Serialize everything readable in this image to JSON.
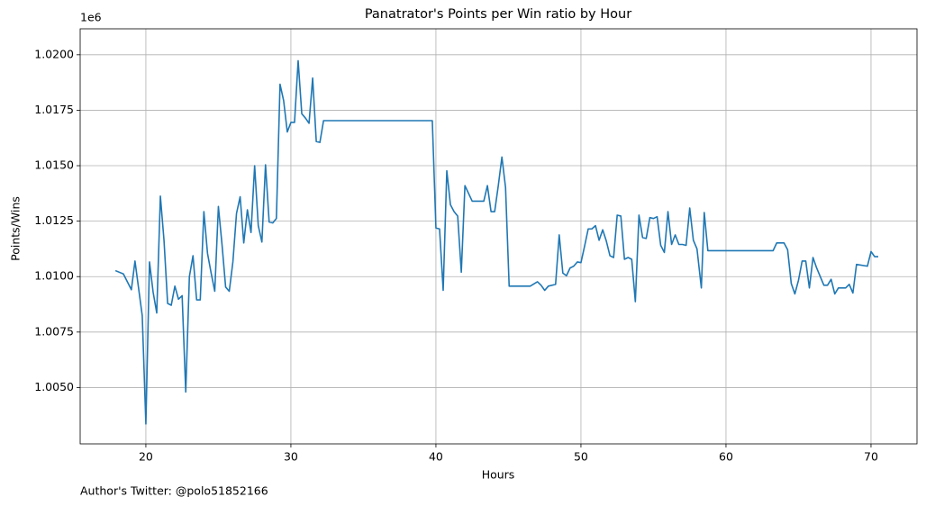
{
  "chart_data": {
    "type": "line",
    "title": "Panatrator's Points per Win ratio by Hour",
    "xlabel": "Hours",
    "ylabel": "Points/Wins",
    "y_offset_label": "1e6",
    "footnote": "Author's Twitter: @polo51852166",
    "color": "#1f77b4",
    "grid": true,
    "xlim": [
      15.47,
      73.17
    ],
    "ylim": [
      1.00246,
      1.02117
    ],
    "xticks": [
      20,
      30,
      40,
      50,
      60,
      70
    ],
    "yticks": [
      {
        "value": 1.005,
        "label": "1.0050"
      },
      {
        "value": 1.0075,
        "label": "1.0075"
      },
      {
        "value": 1.01,
        "label": "1.0100"
      },
      {
        "value": 1.0125,
        "label": "1.0125"
      },
      {
        "value": 1.015,
        "label": "1.0150"
      },
      {
        "value": 1.0175,
        "label": "1.0175"
      },
      {
        "value": 1.02,
        "label": "1.0200"
      }
    ],
    "x": [
      17.9,
      18.45,
      19.0,
      19.25,
      19.75,
      20.0,
      20.25,
      20.5,
      20.75,
      21.0,
      21.25,
      21.5,
      21.75,
      22.0,
      22.25,
      22.5,
      22.75,
      23.0,
      23.25,
      23.5,
      23.75,
      24.0,
      24.25,
      24.5,
      24.75,
      25.0,
      25.25,
      25.5,
      25.75,
      26.0,
      26.25,
      26.5,
      26.75,
      27.0,
      27.25,
      27.5,
      27.75,
      28.0,
      28.25,
      28.5,
      28.75,
      29.0,
      29.25,
      29.5,
      29.75,
      30.0,
      30.25,
      30.5,
      30.75,
      31.0,
      31.25,
      31.5,
      31.75,
      32.0,
      32.25,
      39.75,
      40.0,
      40.25,
      40.5,
      40.75,
      41.0,
      41.25,
      41.5,
      41.75,
      42.0,
      42.25,
      42.5,
      43.3,
      43.55,
      43.8,
      44.05,
      44.3,
      44.55,
      44.8,
      45.05,
      46.5,
      47.0,
      47.25,
      47.5,
      47.75,
      48.25,
      48.5,
      48.75,
      49.0,
      49.25,
      49.5,
      49.75,
      50.0,
      50.25,
      50.5,
      50.75,
      51.0,
      51.25,
      51.5,
      51.75,
      52.0,
      52.25,
      52.5,
      52.75,
      53.0,
      53.25,
      53.5,
      53.75,
      54.0,
      54.25,
      54.5,
      54.75,
      55.0,
      55.25,
      55.5,
      55.75,
      56.0,
      56.25,
      56.5,
      56.75,
      57.0,
      57.25,
      57.5,
      57.75,
      58.0,
      58.3,
      58.5,
      58.75,
      63.25,
      63.5,
      64.0,
      64.25,
      64.5,
      64.75,
      65.0,
      65.25,
      65.5,
      65.75,
      66.0,
      66.25,
      66.75,
      67.0,
      67.25,
      67.5,
      67.75,
      68.25,
      68.5,
      68.75,
      69.0,
      69.75,
      70.0,
      70.25,
      70.5
    ],
    "values": [
      1.01027,
      1.01012,
      1.00941,
      1.0107,
      1.00824,
      1.00336,
      1.01066,
      1.0093,
      1.00836,
      1.01363,
      1.01164,
      1.00879,
      1.00871,
      1.00957,
      1.00898,
      1.00914,
      1.0048,
      1.01,
      1.01094,
      1.00895,
      1.00895,
      1.01293,
      1.01105,
      1.01016,
      1.00934,
      1.01316,
      1.01145,
      1.00953,
      1.00934,
      1.01066,
      1.01285,
      1.0136,
      1.01152,
      1.01301,
      1.01199,
      1.015,
      1.0123,
      1.01156,
      1.01504,
      1.01246,
      1.01242,
      1.01262,
      1.01867,
      1.01793,
      1.01652,
      1.01695,
      1.01695,
      1.01973,
      1.01734,
      1.01715,
      1.01691,
      1.01895,
      1.01609,
      1.01605,
      1.01703,
      1.01703,
      1.01219,
      1.01215,
      1.00938,
      1.01477,
      1.01324,
      1.01293,
      1.01273,
      1.0102,
      1.0141,
      1.01375,
      1.0134,
      1.0134,
      1.0141,
      1.01293,
      1.01293,
      1.0141,
      1.01539,
      1.01402,
      1.00957,
      1.00957,
      1.00977,
      1.00961,
      1.00938,
      1.00957,
      1.00965,
      1.01188,
      1.01016,
      1.01004,
      1.01039,
      1.01047,
      1.01066,
      1.01063,
      1.01137,
      1.01215,
      1.01215,
      1.0123,
      1.01164,
      1.01211,
      1.0116,
      1.01094,
      1.01086,
      1.01277,
      1.01273,
      1.01078,
      1.01086,
      1.01078,
      1.00887,
      1.01277,
      1.01176,
      1.01172,
      1.01266,
      1.01262,
      1.0127,
      1.01141,
      1.01109,
      1.01293,
      1.01145,
      1.01188,
      1.01145,
      1.01145,
      1.01141,
      1.01309,
      1.01164,
      1.01125,
      1.00949,
      1.01289,
      1.01117,
      1.01117,
      1.01152,
      1.01152,
      1.01121,
      1.00969,
      1.00922,
      1.00984,
      1.0107,
      1.0107,
      1.00949,
      1.01086,
      1.01039,
      1.00961,
      1.00961,
      1.00988,
      1.00922,
      1.00949,
      1.00949,
      1.00965,
      1.00926,
      1.01055,
      1.01047,
      1.01113,
      1.0109,
      1.0109
    ]
  }
}
